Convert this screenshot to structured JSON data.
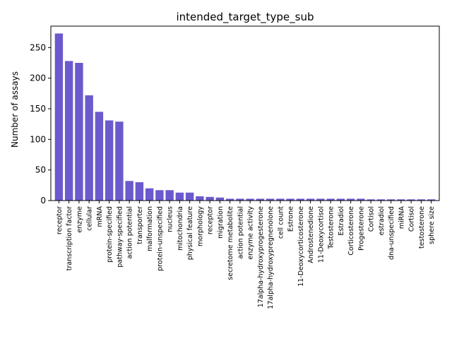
{
  "chart_data": {
    "type": "bar",
    "title": "intended_target_type_sub",
    "xlabel": "",
    "ylabel": "Number of assays",
    "ylim": [
      0,
      285
    ],
    "yticks": [
      0,
      50,
      100,
      150,
      200,
      250
    ],
    "bar_color": "#6a5acd",
    "grid": false,
    "categories": [
      "receptor",
      "transcription factor",
      "enzyme",
      "cellular",
      "mRNA",
      "protein-specified",
      "pathway-specified",
      "action potential",
      "transporter",
      "malformation",
      "protein-unspecified",
      "nucleus",
      "mitochondria",
      "physical feature",
      "morphology",
      "receptor ",
      "migration",
      "secretome metabolite",
      "action potential ",
      "enzyme activity",
      "17alpha-hydroxyprogesterone",
      "17alpha-hydroxypregnenolone",
      "cell count",
      "Estrone",
      "11-Deoxycorticosterone",
      "Androstenedione",
      "11-Deoxycortisol",
      "Testosterone",
      "Estradiol",
      "Corticosterone",
      "Progesterone",
      "Cortisol",
      "estradiol",
      "dna-unspecified",
      "miRNA",
      "Cortisol ",
      "testosterone",
      "sphere size"
    ],
    "values": [
      273,
      228,
      225,
      172,
      145,
      131,
      129,
      32,
      30,
      20,
      17,
      17,
      13,
      13,
      7,
      6,
      5,
      3,
      3,
      3,
      3,
      3,
      3,
      3,
      3,
      3,
      3,
      3,
      3,
      3,
      3,
      2,
      2,
      2,
      2,
      2,
      2,
      2
    ]
  }
}
